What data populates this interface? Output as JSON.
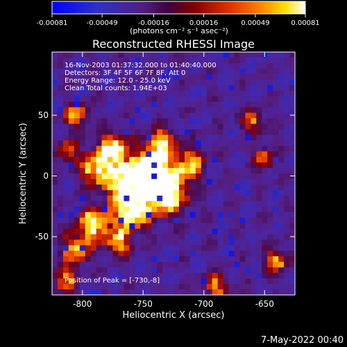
{
  "chart_data": {
    "type": "heatmap",
    "title": "Reconstructed RHESSI Image",
    "xlabel": "Heliocentric X (arcsec)",
    "ylabel": "Heliocentric Y (arcsec)",
    "xlim": [
      -825,
      -625
    ],
    "ylim": [
      -98,
      102
    ],
    "x_ticks": [
      -800,
      -750,
      -700,
      -650
    ],
    "x_tick_labels": [
      "-800",
      "-750",
      "-700",
      "-650"
    ],
    "y_ticks": [
      -50,
      0,
      50
    ],
    "y_tick_labels": [
      "-50",
      "0",
      "50"
    ],
    "colorbar": {
      "range": [
        -0.00081,
        0.00081
      ],
      "ticks": [
        -0.00081,
        -0.00049,
        -0.00016,
        0.00016,
        0.00049,
        0.00081
      ],
      "tick_labels": [
        "-0.00081",
        "-0.00049",
        "-0.00016",
        "0.00016",
        "0.00049",
        "0.00081"
      ],
      "unit_text": "(photons cm⁻² s⁻¹ asec⁻²)"
    },
    "info_lines": [
      "16-Nov-2003 01:37:32.000 to 01:40:40.000",
      "Detectors: 3F 4F 5F 6F 7F 8F, Att 0",
      "Energy Range: 12.0 - 25.0 keV",
      "Clean     Total counts: 1.94E+03"
    ],
    "peak_label": "Position of Peak = [-730,-8]",
    "peak": {
      "x": -730,
      "y": -8
    },
    "colormap": [
      "#0000ff",
      "#3030d0",
      "#502090",
      "#501070",
      "#800000",
      "#d03000",
      "#ff8000",
      "#ffd000",
      "#ffff90",
      "#ffffff"
    ],
    "image_grid": {
      "x_range": [
        -825,
        -625
      ],
      "y_range": [
        -98,
        102
      ],
      "note_cols": 40,
      "note_rows": 40
    },
    "blobs": [
      {
        "x": -733,
        "y": -12,
        "s": 12,
        "a": 0.95
      },
      {
        "x": -745,
        "y": 5,
        "s": 10,
        "a": 0.8
      },
      {
        "x": -765,
        "y": -5,
        "s": 11,
        "a": 0.75
      },
      {
        "x": -775,
        "y": 20,
        "s": 9,
        "a": 0.7
      },
      {
        "x": -790,
        "y": 5,
        "s": 8,
        "a": 0.6
      },
      {
        "x": -760,
        "y": -30,
        "s": 10,
        "a": 0.75
      },
      {
        "x": -735,
        "y": 25,
        "s": 8,
        "a": 0.65
      },
      {
        "x": -790,
        "y": -40,
        "s": 9,
        "a": 0.7
      },
      {
        "x": -805,
        "y": -60,
        "s": 8,
        "a": 0.55
      },
      {
        "x": -770,
        "y": -55,
        "s": 7,
        "a": 0.55
      },
      {
        "x": -712,
        "y": 10,
        "s": 8,
        "a": 0.55
      },
      {
        "x": -805,
        "y": 50,
        "s": 7,
        "a": 0.45
      },
      {
        "x": -812,
        "y": 20,
        "s": 6,
        "a": 0.45
      },
      {
        "x": -660,
        "y": 45,
        "s": 6,
        "a": 0.45
      },
      {
        "x": -640,
        "y": -70,
        "s": 7,
        "a": 0.45
      },
      {
        "x": -690,
        "y": -90,
        "s": 7,
        "a": 0.45
      },
      {
        "x": -650,
        "y": 15,
        "s": 6,
        "a": 0.4
      },
      {
        "x": -815,
        "y": -85,
        "s": 7,
        "a": 0.45
      }
    ]
  },
  "footer": {
    "date": "7-May-2022 00:40"
  }
}
